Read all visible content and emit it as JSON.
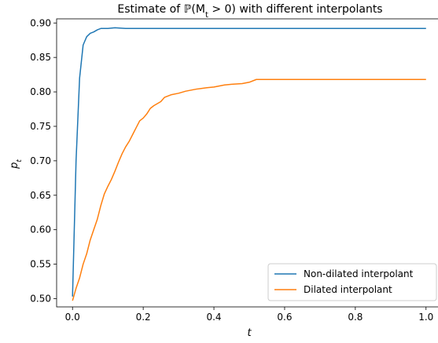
{
  "chart_data": {
    "type": "line",
    "title": "Estimate of ℙ(M",
    "title_sub": "t",
    "title_rest": " > 0) with different interpolants",
    "xlabel": "t",
    "ylabel": "p",
    "ylabel_sub": "t",
    "xlim": [
      -0.045,
      1.045
    ],
    "ylim": [
      0.488,
      0.906
    ],
    "xticks": [
      0.0,
      0.2,
      0.4,
      0.6,
      0.8,
      1.0
    ],
    "xtick_labels": [
      "0.0",
      "0.2",
      "0.4",
      "0.6",
      "0.8",
      "1.0"
    ],
    "yticks": [
      0.5,
      0.55,
      0.6,
      0.65,
      0.7,
      0.75,
      0.8,
      0.85,
      0.9
    ],
    "ytick_labels": [
      "0.50",
      "0.55",
      "0.60",
      "0.65",
      "0.70",
      "0.75",
      "0.80",
      "0.85",
      "0.90"
    ],
    "grid": false,
    "legend_position": "lower-right",
    "series": [
      {
        "name": "Non-dilated interpolant",
        "color": "#1f77b4",
        "points": [
          [
            0.0,
            0.503
          ],
          [
            0.01,
            0.7
          ],
          [
            0.02,
            0.82
          ],
          [
            0.03,
            0.868
          ],
          [
            0.04,
            0.88
          ],
          [
            0.05,
            0.885
          ],
          [
            0.06,
            0.887
          ],
          [
            0.07,
            0.89
          ],
          [
            0.08,
            0.892
          ],
          [
            0.1,
            0.892
          ],
          [
            0.12,
            0.893
          ],
          [
            0.15,
            0.892
          ],
          [
            0.2,
            0.892
          ],
          [
            0.3,
            0.892
          ],
          [
            0.4,
            0.892
          ],
          [
            0.5,
            0.892
          ],
          [
            0.6,
            0.892
          ],
          [
            0.7,
            0.892
          ],
          [
            0.8,
            0.892
          ],
          [
            0.9,
            0.892
          ],
          [
            1.0,
            0.892
          ]
        ]
      },
      {
        "name": "Dilated interpolant",
        "color": "#ff7f0e",
        "points": [
          [
            0.0,
            0.497
          ],
          [
            0.01,
            0.515
          ],
          [
            0.02,
            0.53
          ],
          [
            0.03,
            0.55
          ],
          [
            0.04,
            0.565
          ],
          [
            0.05,
            0.585
          ],
          [
            0.06,
            0.6
          ],
          [
            0.07,
            0.615
          ],
          [
            0.08,
            0.635
          ],
          [
            0.09,
            0.652
          ],
          [
            0.1,
            0.663
          ],
          [
            0.11,
            0.673
          ],
          [
            0.12,
            0.685
          ],
          [
            0.13,
            0.698
          ],
          [
            0.14,
            0.71
          ],
          [
            0.15,
            0.72
          ],
          [
            0.16,
            0.728
          ],
          [
            0.17,
            0.738
          ],
          [
            0.18,
            0.748
          ],
          [
            0.19,
            0.758
          ],
          [
            0.2,
            0.762
          ],
          [
            0.21,
            0.768
          ],
          [
            0.22,
            0.776
          ],
          [
            0.23,
            0.78
          ],
          [
            0.25,
            0.786
          ],
          [
            0.26,
            0.792
          ],
          [
            0.28,
            0.796
          ],
          [
            0.3,
            0.798
          ],
          [
            0.32,
            0.801
          ],
          [
            0.35,
            0.804
          ],
          [
            0.38,
            0.806
          ],
          [
            0.4,
            0.807
          ],
          [
            0.43,
            0.81
          ],
          [
            0.45,
            0.811
          ],
          [
            0.48,
            0.812
          ],
          [
            0.5,
            0.814
          ],
          [
            0.52,
            0.818
          ],
          [
            0.55,
            0.818
          ],
          [
            0.6,
            0.818
          ],
          [
            0.7,
            0.818
          ],
          [
            0.8,
            0.818
          ],
          [
            0.9,
            0.818
          ],
          [
            1.0,
            0.818
          ]
        ]
      }
    ]
  }
}
